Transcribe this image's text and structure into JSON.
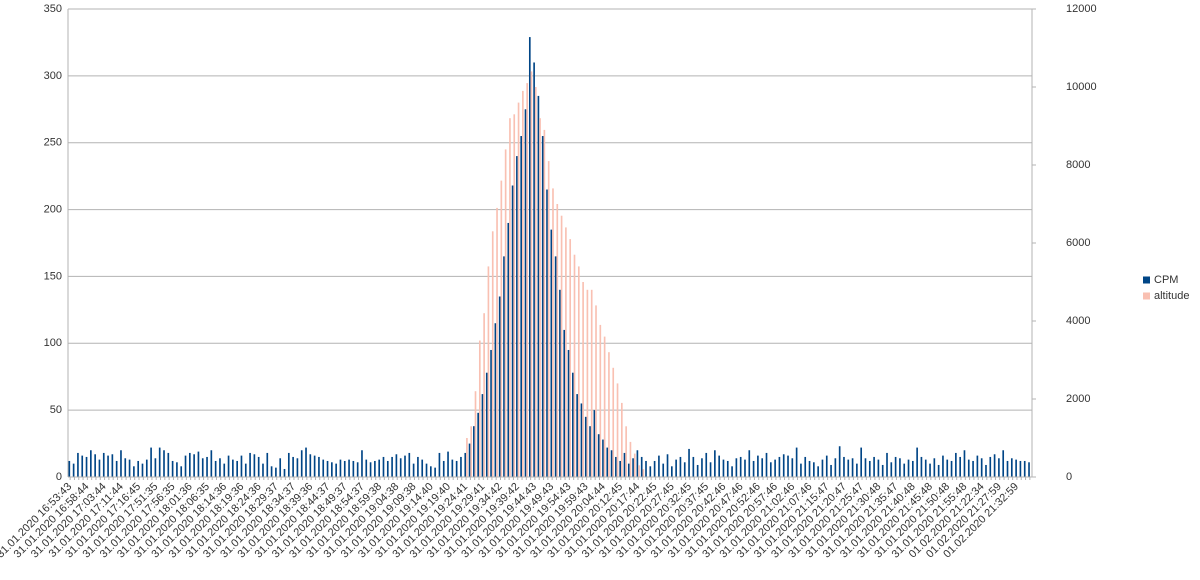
{
  "chart_data": {
    "type": "bar",
    "categories": [
      "31.01.2020 16:53:43",
      null,
      null,
      null,
      "31.01.2020 16:58:44",
      null,
      null,
      null,
      "31.01.2020 17:03:44",
      null,
      null,
      null,
      "31.01.2020 17:11:44",
      null,
      null,
      null,
      "31.01.2020 17:16:45",
      null,
      null,
      null,
      "31.01.2020 17:51:35",
      null,
      null,
      null,
      "31.01.2020 17:56:35",
      null,
      null,
      null,
      "31.01.2020 18:01:36",
      null,
      null,
      null,
      "31.01.2020 18:06:35",
      null,
      null,
      null,
      "31.01.2020 18:14:36",
      null,
      null,
      null,
      "31.01.2020 18:19:36",
      null,
      null,
      null,
      "31.01.2020 18:24:36",
      null,
      null,
      null,
      "31.01.2020 18:29:37",
      null,
      null,
      null,
      "31.01.2020 18:34:37",
      null,
      null,
      null,
      "31.01.2020 18:39:36",
      null,
      null,
      null,
      "31.01.2020 18:44:37",
      null,
      null,
      null,
      "31.01.2020 18:49:37",
      null,
      null,
      null,
      "31.01.2020 18:54:37",
      null,
      null,
      null,
      "31.01.2020 18:59:38",
      null,
      null,
      null,
      "31.01.2020 19:04:38",
      null,
      null,
      null,
      "31.01.2020 19:09:38",
      null,
      null,
      null,
      "31.01.2020 19:14:40",
      null,
      null,
      null,
      "31.01.2020 19:19:40",
      null,
      null,
      null,
      "31.01.2020 19:24:41",
      null,
      null,
      null,
      "31.01.2020 19:29:41",
      null,
      null,
      null,
      "31.01.2020 19:34:42",
      null,
      null,
      null,
      "31.01.2020 19:39:42",
      null,
      null,
      null,
      "31.01.2020 19:44:43",
      null,
      null,
      null,
      "31.01.2020 19:49:43",
      null,
      null,
      null,
      "31.01.2020 19:54:43",
      null,
      null,
      null,
      "31.01.2020 19:59:43",
      null,
      null,
      null,
      "31.01.2020 20:04:44",
      null,
      null,
      null,
      "31.01.2020 20:12:45",
      null,
      null,
      null,
      "31.01.2020 20:17:44",
      null,
      null,
      null,
      "31.01.2020 20:22:45",
      null,
      null,
      null,
      "31.01.2020 20:27:45",
      null,
      null,
      null,
      "31.01.2020 20:32:45",
      null,
      null,
      null,
      "31.01.2020 20:37:45",
      null,
      null,
      null,
      "31.01.2020 20:42:46",
      null,
      null,
      null,
      "31.01.2020 20:47:46",
      null,
      null,
      null,
      "31.01.2020 20:52:46",
      null,
      null,
      null,
      "31.01.2020 20:57:46",
      null,
      null,
      null,
      "31.01.2020 21:02:46",
      null,
      null,
      null,
      "31.01.2020 21:07:46",
      null,
      null,
      null,
      "31.01.2020 21:15:47",
      null,
      null,
      null,
      "31.01.2020 21:20:47",
      null,
      null,
      null,
      "31.01.2020 21:25:47",
      null,
      null,
      null,
      "31.01.2020 21:30:48",
      null,
      null,
      null,
      "31.01.2020 21:35:47",
      null,
      null,
      null,
      "31.01.2020 21:40:48",
      null,
      null,
      null,
      "31.01.2020 21:45:48",
      null,
      null,
      null,
      "31.01.2020 21:50:48",
      null,
      null,
      null,
      "31.01.2020 21:55:48",
      null,
      null,
      null,
      "01.02.2020 21:22:34",
      null,
      null,
      null,
      "01.02.2020 21:27:59",
      null,
      null,
      null,
      "01.02.2020 21:32:59",
      null,
      null,
      null
    ],
    "series": [
      {
        "name": "CPM",
        "color": "#004586",
        "values": [
          12,
          10,
          18,
          16,
          15,
          20,
          17,
          13,
          18,
          16,
          17,
          12,
          20,
          14,
          13,
          8,
          12,
          10,
          13,
          22,
          14,
          22,
          20,
          18,
          12,
          11,
          8,
          16,
          18,
          17,
          19,
          14,
          15,
          20,
          12,
          14,
          10,
          16,
          13,
          12,
          16,
          10,
          18,
          17,
          15,
          10,
          18,
          8,
          7,
          14,
          6,
          18,
          15,
          14,
          20,
          22,
          17,
          16,
          15,
          13,
          12,
          11,
          10,
          13,
          12,
          13,
          12,
          11,
          20,
          13,
          11,
          12,
          13,
          15,
          12,
          15,
          17,
          14,
          16,
          18,
          10,
          15,
          13,
          10,
          8,
          7,
          18,
          12,
          19,
          13,
          12,
          15,
          18,
          25,
          38,
          48,
          62,
          78,
          95,
          115,
          135,
          165,
          190,
          218,
          240,
          255,
          275,
          329,
          310,
          285,
          255,
          215,
          185,
          165,
          140,
          110,
          95,
          78,
          62,
          55,
          45,
          38,
          50,
          32,
          28,
          22,
          20,
          15,
          12,
          18,
          10,
          14,
          20,
          15,
          12,
          8,
          12,
          16,
          10,
          17,
          8,
          13,
          15,
          11,
          21,
          15,
          9,
          14,
          18,
          11,
          20,
          16,
          13,
          12,
          8,
          14,
          15,
          13,
          20,
          12,
          16,
          14,
          18,
          11,
          13,
          15,
          17,
          16,
          14,
          22,
          10,
          15,
          12,
          11,
          8,
          13,
          16,
          9,
          14,
          23,
          15,
          13,
          14,
          10,
          22,
          14,
          12,
          15,
          13,
          9,
          18,
          11,
          15,
          14,
          10,
          13,
          12,
          22,
          15,
          13,
          10,
          14,
          9,
          16,
          13,
          12,
          18,
          15,
          20,
          13,
          12,
          16,
          14,
          9,
          15,
          17,
          14,
          20,
          12,
          14,
          13,
          12,
          12,
          11
        ]
      },
      {
        "name": "altitude",
        "color": "#f9c0b2",
        "axis": "y2",
        "values": [
          0,
          0,
          0,
          0,
          0,
          0,
          0,
          0,
          0,
          0,
          0,
          0,
          0,
          0,
          0,
          0,
          0,
          0,
          0,
          0,
          0,
          0,
          0,
          0,
          0,
          0,
          0,
          0,
          0,
          0,
          0,
          0,
          0,
          0,
          0,
          0,
          0,
          0,
          0,
          0,
          0,
          0,
          0,
          0,
          0,
          0,
          0,
          0,
          0,
          0,
          0,
          0,
          0,
          0,
          0,
          0,
          0,
          0,
          0,
          0,
          0,
          0,
          0,
          0,
          0,
          0,
          0,
          0,
          0,
          0,
          0,
          0,
          0,
          0,
          0,
          0,
          0,
          0,
          0,
          0,
          0,
          0,
          0,
          0,
          0,
          0,
          0,
          0,
          0,
          0,
          0,
          0,
          1000,
          1300,
          2200,
          3500,
          4200,
          5400,
          6300,
          6900,
          7600,
          8400,
          9200,
          9300,
          9600,
          9900,
          10100,
          10400,
          10000,
          9200,
          8900,
          8100,
          7400,
          7000,
          6700,
          6400,
          6100,
          5700,
          5400,
          5000,
          4800,
          4800,
          4400,
          3900,
          3600,
          3200,
          2800,
          2400,
          1900,
          1300,
          900,
          600,
          300,
          200,
          0,
          0,
          0,
          0,
          0,
          0,
          0,
          0,
          0,
          0,
          0,
          0,
          0,
          0,
          0,
          0,
          0,
          0,
          0,
          0,
          0,
          0,
          0,
          0,
          0,
          0,
          0,
          0,
          0,
          0,
          0,
          0,
          0,
          0,
          0,
          0,
          0,
          0,
          0,
          0,
          0,
          0,
          0,
          0,
          0,
          0,
          0,
          0,
          0,
          0,
          0,
          0,
          0,
          0,
          0,
          0,
          0,
          0,
          0,
          0,
          0,
          0,
          0,
          0,
          0,
          0,
          0,
          0,
          0,
          0,
          0,
          0,
          0,
          0,
          0,
          0,
          0,
          0,
          0,
          0,
          0,
          0,
          0,
          0,
          0,
          0,
          0,
          0,
          0,
          0
        ]
      }
    ],
    "ylim": [
      0,
      350
    ],
    "yticks": [
      0,
      50,
      100,
      150,
      200,
      250,
      300,
      350
    ],
    "y2lim": [
      0,
      12000
    ],
    "y2ticks": [
      0,
      2000,
      4000,
      6000,
      8000,
      10000,
      12000
    ],
    "grid": true,
    "legend": "right"
  }
}
